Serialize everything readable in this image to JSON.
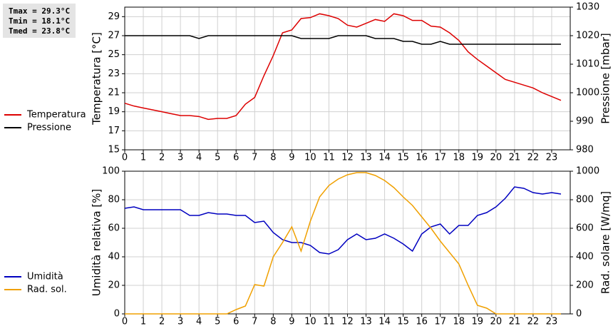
{
  "chart_data": [
    {
      "type": "line",
      "annotations": [
        "Tmax = 29.3°C",
        "Tmin = 18.1°C",
        "Tmed = 23.8°C"
      ],
      "ylabel": "Temperatura [°C]",
      "y2label": "Pressione [mbar]",
      "xlim": [
        0,
        24
      ],
      "xticks": [
        0,
        1,
        2,
        3,
        4,
        5,
        6,
        7,
        8,
        9,
        10,
        11,
        12,
        13,
        14,
        15,
        16,
        17,
        18,
        19,
        20,
        21,
        22,
        23
      ],
      "ylim": [
        15,
        30
      ],
      "yticks": [
        15,
        17,
        19,
        21,
        23,
        25,
        27,
        29
      ],
      "y2lim": [
        980,
        1030
      ],
      "y2ticks": [
        980,
        990,
        1000,
        1010,
        1020,
        1030
      ],
      "grid": true,
      "x": [
        0,
        0.5,
        1,
        1.5,
        2,
        2.5,
        3,
        3.5,
        4,
        4.5,
        5,
        5.5,
        6,
        6.5,
        7,
        7.5,
        8,
        8.5,
        9,
        9.5,
        10,
        10.5,
        11,
        11.5,
        12,
        12.5,
        13,
        13.5,
        14,
        14.5,
        15,
        15.5,
        16,
        16.5,
        17,
        17.5,
        18,
        18.5,
        19,
        19.5,
        20,
        20.5,
        21,
        21.5,
        22,
        22.5,
        23,
        23.5
      ],
      "series": [
        {
          "name": "Temperatura",
          "color": "#dd0000",
          "values": [
            19.9,
            19.6,
            19.4,
            19.2,
            19.0,
            18.8,
            18.6,
            18.6,
            18.5,
            18.2,
            18.3,
            18.3,
            18.6,
            19.8,
            20.5,
            22.8,
            24.9,
            27.3,
            27.6,
            28.8,
            28.9,
            29.3,
            29.1,
            28.8,
            28.1,
            27.9,
            28.3,
            28.7,
            28.5,
            29.3,
            29.1,
            28.6,
            28.6,
            28.0,
            27.9,
            27.3,
            26.5,
            25.3,
            24.5,
            23.8,
            23.1,
            22.4,
            22.1,
            21.8,
            21.5,
            21.0,
            20.6,
            20.2
          ]
        },
        {
          "name": "Pressione",
          "color": "#000000",
          "axis": "y2",
          "values": [
            1020,
            1020,
            1020,
            1020,
            1020,
            1020,
            1020,
            1020,
            1019,
            1020,
            1020,
            1020,
            1020,
            1020,
            1020,
            1020,
            1020,
            1020,
            1020,
            1019,
            1019,
            1019,
            1019,
            1020,
            1020,
            1020,
            1020,
            1019,
            1019,
            1019,
            1018,
            1018,
            1017,
            1017,
            1018,
            1017,
            1017,
            1017,
            1017,
            1017,
            1017,
            1017,
            1017,
            1017,
            1017,
            1017,
            1017,
            1017
          ]
        }
      ]
    },
    {
      "type": "line",
      "ylabel": "Umidità relativa [%]",
      "y2label": "Rad. solare [W/mq]",
      "xlim": [
        0,
        24
      ],
      "xticks": [
        0,
        1,
        2,
        3,
        4,
        5,
        6,
        7,
        8,
        9,
        10,
        11,
        12,
        13,
        14,
        15,
        16,
        17,
        18,
        19,
        20,
        21,
        22,
        23
      ],
      "ylim": [
        0,
        100
      ],
      "yticks": [
        0,
        20,
        40,
        60,
        80,
        100
      ],
      "y2lim": [
        0,
        1000
      ],
      "y2ticks": [
        0,
        200,
        400,
        600,
        800,
        1000
      ],
      "grid": true,
      "x": [
        0,
        0.5,
        1,
        1.5,
        2,
        2.5,
        3,
        3.5,
        4,
        4.5,
        5,
        5.5,
        6,
        6.5,
        7,
        7.5,
        8,
        8.5,
        9,
        9.5,
        10,
        10.5,
        11,
        11.5,
        12,
        12.5,
        13,
        13.5,
        14,
        14.5,
        15,
        15.5,
        16,
        16.5,
        17,
        17.5,
        18,
        18.5,
        19,
        19.5,
        20,
        20.5,
        21,
        21.5,
        22,
        22.5,
        23,
        23.5
      ],
      "series": [
        {
          "name": "Umidità",
          "color": "#0000c0",
          "values": [
            74,
            75,
            73,
            73,
            73,
            73,
            73,
            69,
            69,
            71,
            70,
            70,
            69,
            69,
            64,
            65,
            57,
            52,
            50,
            50,
            48,
            43,
            42,
            45,
            52,
            56,
            52,
            53,
            56,
            53,
            49,
            44,
            56,
            61,
            63,
            56,
            62,
            62,
            69,
            71,
            75,
            81,
            89,
            88,
            85,
            84,
            85,
            84
          ]
        },
        {
          "name": "Rad. sol.",
          "color": "#f0a000",
          "axis": "y2",
          "values": [
            0,
            0,
            0,
            0,
            0,
            0,
            0,
            0,
            0,
            0,
            0,
            0,
            30,
            55,
            205,
            195,
            400,
            500,
            610,
            440,
            650,
            820,
            900,
            945,
            975,
            990,
            990,
            970,
            935,
            885,
            820,
            760,
            680,
            600,
            510,
            430,
            350,
            200,
            60,
            40,
            0,
            0,
            0,
            0,
            0,
            0,
            0,
            0
          ]
        }
      ]
    }
  ]
}
